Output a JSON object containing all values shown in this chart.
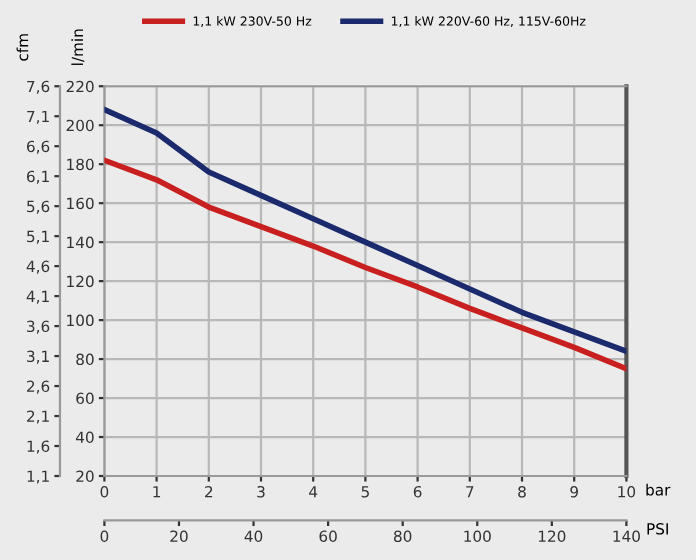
{
  "chart_data": {
    "type": "line",
    "x": [
      0,
      1,
      2,
      3,
      4,
      5,
      6,
      7,
      8,
      9,
      10
    ],
    "series": [
      {
        "name": "1,1 kW 230V-50 Hz",
        "color": "#c8201e",
        "values": [
          182,
          172,
          158,
          148,
          138,
          127,
          117,
          106,
          96,
          86,
          75
        ]
      },
      {
        "name": "1,1 kW 220V-60 Hz, 115V-60Hz",
        "color": "#1a2a6c",
        "values": [
          208,
          196,
          176,
          164,
          152,
          140,
          128,
          116,
          104,
          94,
          84
        ]
      }
    ],
    "xlabel": "bar",
    "x2label": "PSI",
    "ylabel": "l/min",
    "y2label": "cfm",
    "xlim": [
      0,
      10
    ],
    "xticks": [
      0,
      1,
      2,
      3,
      4,
      5,
      6,
      7,
      8,
      9,
      10
    ],
    "x2lim": [
      0,
      140
    ],
    "x2ticks": [
      0,
      20,
      40,
      60,
      80,
      100,
      120,
      140
    ],
    "ylim": [
      20,
      220
    ],
    "yticks": [
      20,
      40,
      60,
      80,
      100,
      120,
      140,
      160,
      180,
      200,
      220
    ],
    "y2lim": [
      1.1,
      7.6
    ],
    "y2ticks": [
      {
        "value": 1.1,
        "label": "1,1"
      },
      {
        "value": 1.6,
        "label": "1,6"
      },
      {
        "value": 2.1,
        "label": "2,1"
      },
      {
        "value": 2.6,
        "label": "2,6"
      },
      {
        "value": 3.1,
        "label": "3,1"
      },
      {
        "value": 3.6,
        "label": "3,6"
      },
      {
        "value": 4.1,
        "label": "4,1"
      },
      {
        "value": 4.6,
        "label": "4,6"
      },
      {
        "value": 5.1,
        "label": "5,1"
      },
      {
        "value": 5.6,
        "label": "5,6"
      },
      {
        "value": 6.1,
        "label": "6,1"
      },
      {
        "value": 6.6,
        "label": "6,6"
      },
      {
        "value": 7.1,
        "label": "7,1"
      },
      {
        "value": 7.6,
        "label": "7,6"
      }
    ],
    "grid": true,
    "legend": "top",
    "marker": "none",
    "line_style": "solid"
  }
}
